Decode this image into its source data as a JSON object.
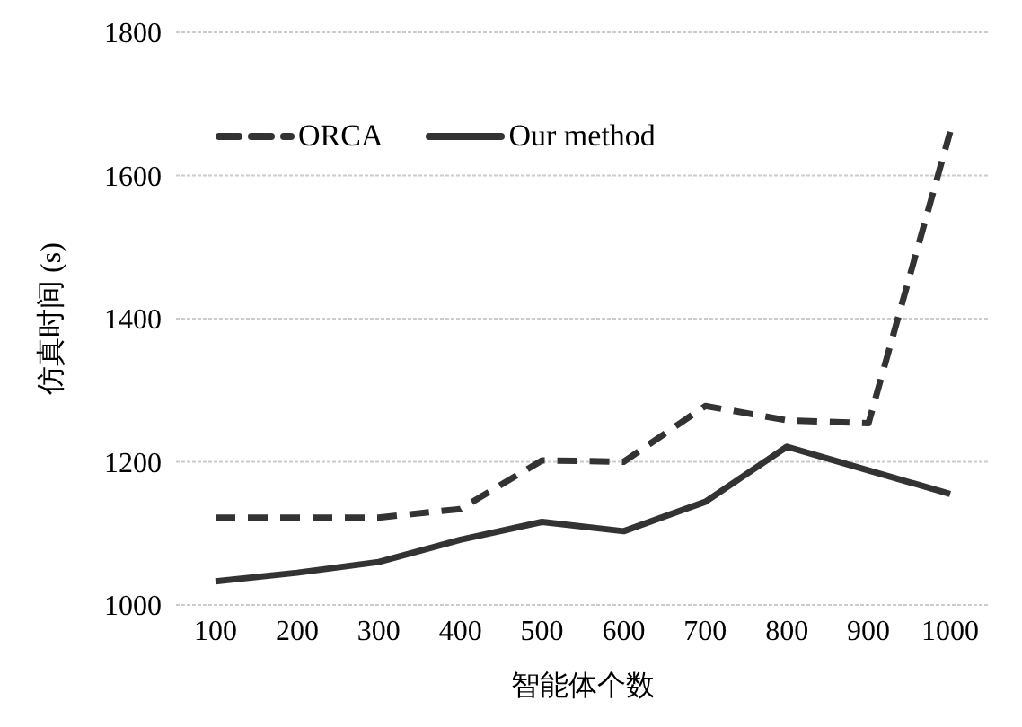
{
  "chart_data": {
    "type": "line",
    "xlabel": "智能体个数",
    "ylabel": "仿真时间 (s)",
    "categories": [
      "100",
      "200",
      "300",
      "400",
      "500",
      "600",
      "700",
      "800",
      "900",
      "1000"
    ],
    "series": [
      {
        "name": "ORCA",
        "color": "#333333",
        "line_style": "dashed",
        "values": [
          1122,
          1122,
          1122,
          1134,
          1202,
          1200,
          1278,
          1258,
          1254,
          1661
        ]
      },
      {
        "name": "Our method",
        "color": "#333333",
        "line_style": "solid",
        "values": [
          1033,
          1045,
          1060,
          1091,
          1116,
          1103,
          1144,
          1221,
          1188,
          1155
        ]
      }
    ],
    "ylim": [
      1000,
      1800
    ],
    "yticks": [
      1000,
      1200,
      1400,
      1600,
      1800
    ],
    "grid": "y",
    "legend": "top left",
    "marker": "none"
  }
}
